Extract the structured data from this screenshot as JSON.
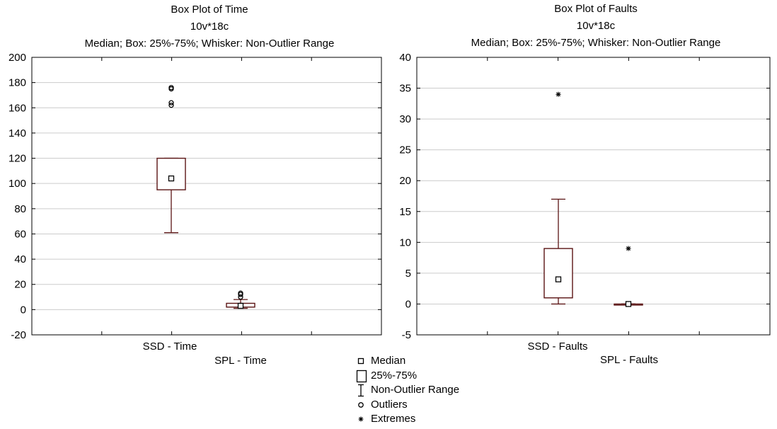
{
  "chart_data": [
    {
      "type": "box",
      "title": "Box Plot of Time",
      "subtitle": "10v*18c",
      "caption": "Median; Box: 25%-75%; Whisker: Non-Outlier Range",
      "ylim": [
        -20,
        200
      ],
      "yticks": [
        -20,
        0,
        20,
        40,
        60,
        80,
        100,
        120,
        140,
        160,
        180,
        200
      ],
      "grid": true,
      "categories": [
        "SSD - Time",
        "SPL - Time"
      ],
      "boxes": [
        {
          "name": "SSD - Time",
          "median": 104,
          "q1": 95,
          "q3": 120,
          "whisker_low": 61,
          "whisker_high": 120,
          "outliers": [
            162,
            164,
            175,
            176
          ],
          "extremes": []
        },
        {
          "name": "SPL - Time",
          "median": 3,
          "q1": 2,
          "q3": 5,
          "whisker_low": 1,
          "whisker_high": 8,
          "outliers": [
            10,
            12,
            13
          ],
          "extremes": []
        }
      ]
    },
    {
      "type": "box",
      "title": "Box Plot of Faults",
      "subtitle": "10v*18c",
      "caption": "Median; Box: 25%-75%; Whisker: Non-Outlier Range",
      "ylim": [
        -5,
        40
      ],
      "yticks": [
        -5,
        0,
        5,
        10,
        15,
        20,
        25,
        30,
        35,
        40
      ],
      "grid": true,
      "categories": [
        "SSD - Faults",
        "SPL - Faults"
      ],
      "boxes": [
        {
          "name": "SSD - Faults",
          "median": 4,
          "q1": 1,
          "q3": 9,
          "whisker_low": 0,
          "whisker_high": 17,
          "outliers": [],
          "extremes": [
            34
          ]
        },
        {
          "name": "SPL - Faults",
          "median": 0,
          "q1": 0,
          "q3": 0,
          "whisker_low": 0,
          "whisker_high": 0,
          "outliers": [],
          "extremes": [
            9
          ]
        }
      ]
    }
  ],
  "legend": {
    "median": "Median",
    "box": "25%-75%",
    "range": "Non-Outlier Range",
    "outliers": "Outliers",
    "extremes": "Extremes"
  },
  "colors": {
    "box_stroke": "#5a1414",
    "grid": "#cccccc",
    "axis": "#000000"
  }
}
